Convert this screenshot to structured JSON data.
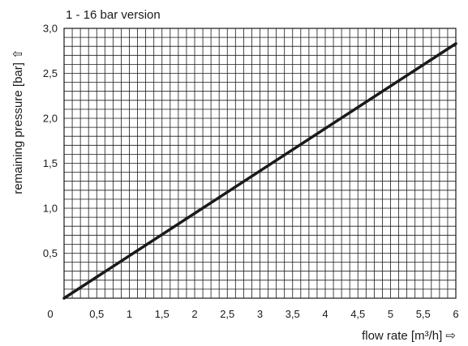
{
  "chart_data": {
    "type": "line",
    "title": "1 - 16 bar version",
    "xlabel": "flow rate [m³/h] ⇨",
    "ylabel": "remaining pressure [bar] ⇧",
    "xlim": [
      0,
      6
    ],
    "ylim": [
      0,
      3.0
    ],
    "x_ticks": [
      "0",
      "0,5",
      "1",
      "1,5",
      "2",
      "2,5",
      "3",
      "3,5",
      "4",
      "4,5",
      "5",
      "5,5",
      "6"
    ],
    "y_ticks": [
      "0,5",
      "1,0",
      "1,5",
      "2,0",
      "2,5",
      "3,0"
    ],
    "grid": true,
    "series": [
      {
        "x": [
          0,
          6
        ],
        "y": [
          0,
          2.83
        ],
        "color": "#1a1a1a"
      }
    ]
  }
}
